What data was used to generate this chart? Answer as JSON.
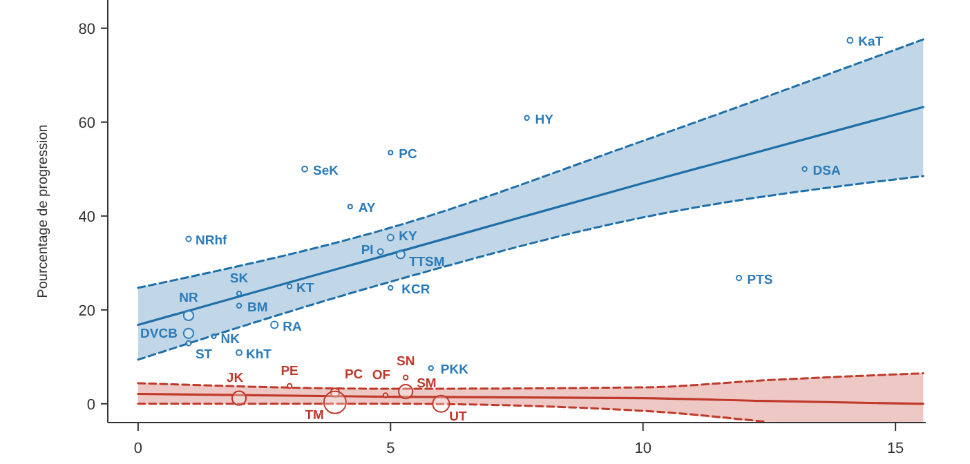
{
  "chart_data": {
    "type": "bubble",
    "ylabel": "Pourcentage de progression",
    "xlim": [
      -0.6,
      15.6
    ],
    "xticks": [
      0,
      5,
      10,
      15
    ],
    "ylim": [
      -4,
      86
    ],
    "yticks": [
      0,
      20,
      40,
      60,
      80
    ],
    "grid": false,
    "marker": "circle",
    "series": [
      {
        "color": "#2b7bb9",
        "x": [
          14.1,
          7.7,
          13.2,
          5.0,
          3.3,
          4.2,
          1.0,
          5.0,
          4.8,
          5.2,
          2.0,
          3.0,
          5.0,
          2.0,
          1.0,
          2.7,
          1.0,
          1.0,
          1.5,
          2.0,
          11.9,
          5.8
        ],
        "values": [
          77.4,
          60.9,
          50,
          53.5,
          50,
          42,
          35.1,
          35.4,
          32.4,
          31.8,
          23.5,
          25,
          24.7,
          20.9,
          18.8,
          16.8,
          15,
          12.9,
          14.4,
          10.9,
          26.8,
          7.6
        ],
        "sizes": [
          0.06,
          0.04,
          0.04,
          0.03,
          0.06,
          0.03,
          0.05,
          0.08,
          0.06,
          0.14,
          0.03,
          0.04,
          0.04,
          0.04,
          0.2,
          0.1,
          0.2,
          0.05,
          0.03,
          0.06,
          0.05,
          0.04
        ]
      },
      {
        "color": "#c0392b",
        "x": [
          2.0,
          3.0,
          3.9,
          3.9,
          4.9,
          5.3,
          5.3,
          6.0
        ],
        "values": [
          1.2,
          3.8,
          2.4,
          0.3,
          1.8,
          5.6,
          2.6,
          0.0
        ],
        "sizes": [
          0.4,
          0.04,
          0.15,
          1,
          0.04,
          0.04,
          0.4,
          0.56
        ]
      },
      {
        "type": "line",
        "marker": "none",
        "color": "#1f6fa8",
        "x": [
          0,
          5,
          10,
          15.55
        ],
        "values": [
          16.8,
          31.9,
          47.0,
          63.2
        ],
        "lower": [
          9.4,
          26,
          39.7,
          48.5
        ],
        "upper": [
          24.7,
          37.5,
          56,
          77.6
        ]
      },
      {
        "type": "line",
        "marker": "none",
        "line_style": "dashed",
        "color": "#1f6fa8",
        "x": [
          0,
          5,
          10,
          15.55
        ],
        "values": [
          9.4,
          26,
          39.7,
          48.5
        ]
      },
      {
        "type": "line",
        "marker": "none",
        "line_style": "dashed",
        "color": "#1f6fa8",
        "x": [
          0,
          5,
          10,
          15.55
        ],
        "values": [
          24.7,
          37.5,
          56,
          77.6
        ]
      },
      {
        "type": "line",
        "marker": "none",
        "color": "#c0392b",
        "x": [
          0,
          5,
          10,
          12.4,
          15.55
        ],
        "values": [
          2.1,
          1.5,
          1.2,
          0.6,
          0
        ],
        "lower": [
          0,
          0,
          -1.5,
          -3.8,
          -4
        ],
        "upper": [
          4.4,
          3.2,
          3.5,
          5.0,
          6.5
        ]
      },
      {
        "type": "line",
        "marker": "none",
        "line_style": "dashed",
        "color": "#c0392b",
        "x": [
          0,
          5,
          10,
          12.4
        ],
        "values": [
          0,
          0,
          -1.5,
          -3.8
        ]
      },
      {
        "type": "line",
        "marker": "none",
        "line_style": "dashed",
        "color": "#c0392b",
        "x": [
          0,
          5,
          10,
          12.4,
          15.55
        ],
        "values": [
          4.4,
          3.2,
          3.5,
          5.0,
          6.5
        ]
      }
    ],
    "annotations": [
      {
        "text": "KaT",
        "x": 14.1,
        "y": 77.4
      },
      {
        "text": "HY",
        "x": 7.7,
        "y": 60.9
      },
      {
        "text": "DSA",
        "x": 13.2,
        "y": 50
      },
      {
        "text": "PC",
        "x": 5.0,
        "y": 53.5
      },
      {
        "text": "SeK",
        "x": 3.3,
        "y": 50
      },
      {
        "text": "AY",
        "x": 4.2,
        "y": 42
      },
      {
        "text": "NRhf",
        "x": 1.0,
        "y": 35.1
      },
      {
        "text": "KY",
        "x": 5.0,
        "y": 35.4
      },
      {
        "text": "PI",
        "x": 4.8,
        "y": 32.4
      },
      {
        "text": "TTSM",
        "x": 5.2,
        "y": 31.8
      },
      {
        "text": "SK",
        "x": 2.0,
        "y": 23.5
      },
      {
        "text": "KT",
        "x": 3.0,
        "y": 25
      },
      {
        "text": "KCR",
        "x": 5.0,
        "y": 24.7
      },
      {
        "text": "BM",
        "x": 2.0,
        "y": 20.9
      },
      {
        "text": "NR",
        "x": 1.0,
        "y": 18.8
      },
      {
        "text": "RA",
        "x": 2.7,
        "y": 16.8
      },
      {
        "text": "DVCB",
        "x": 1.0,
        "y": 15
      },
      {
        "text": "ST",
        "x": 1.0,
        "y": 12.9
      },
      {
        "text": "NK",
        "x": 1.5,
        "y": 14.4
      },
      {
        "text": "KhT",
        "x": 2.0,
        "y": 10.9
      },
      {
        "text": "PTS",
        "x": 11.9,
        "y": 26.8
      },
      {
        "text": "PKK",
        "x": 5.8,
        "y": 7.6
      },
      {
        "text": "JK",
        "x": 2.0,
        "y": 1.2
      },
      {
        "text": "PE",
        "x": 3.0,
        "y": 3.8
      },
      {
        "text": "PC",
        "x": 3.9,
        "y": 2.4
      },
      {
        "text": "TM",
        "x": 3.9,
        "y": 0.3
      },
      {
        "text": "OF",
        "x": 4.9,
        "y": 1.8
      },
      {
        "text": "SN",
        "x": 5.3,
        "y": 5.6
      },
      {
        "text": "SM",
        "x": 5.3,
        "y": 2.6
      },
      {
        "text": "UT",
        "x": 6.0,
        "y": 0.0
      }
    ]
  }
}
